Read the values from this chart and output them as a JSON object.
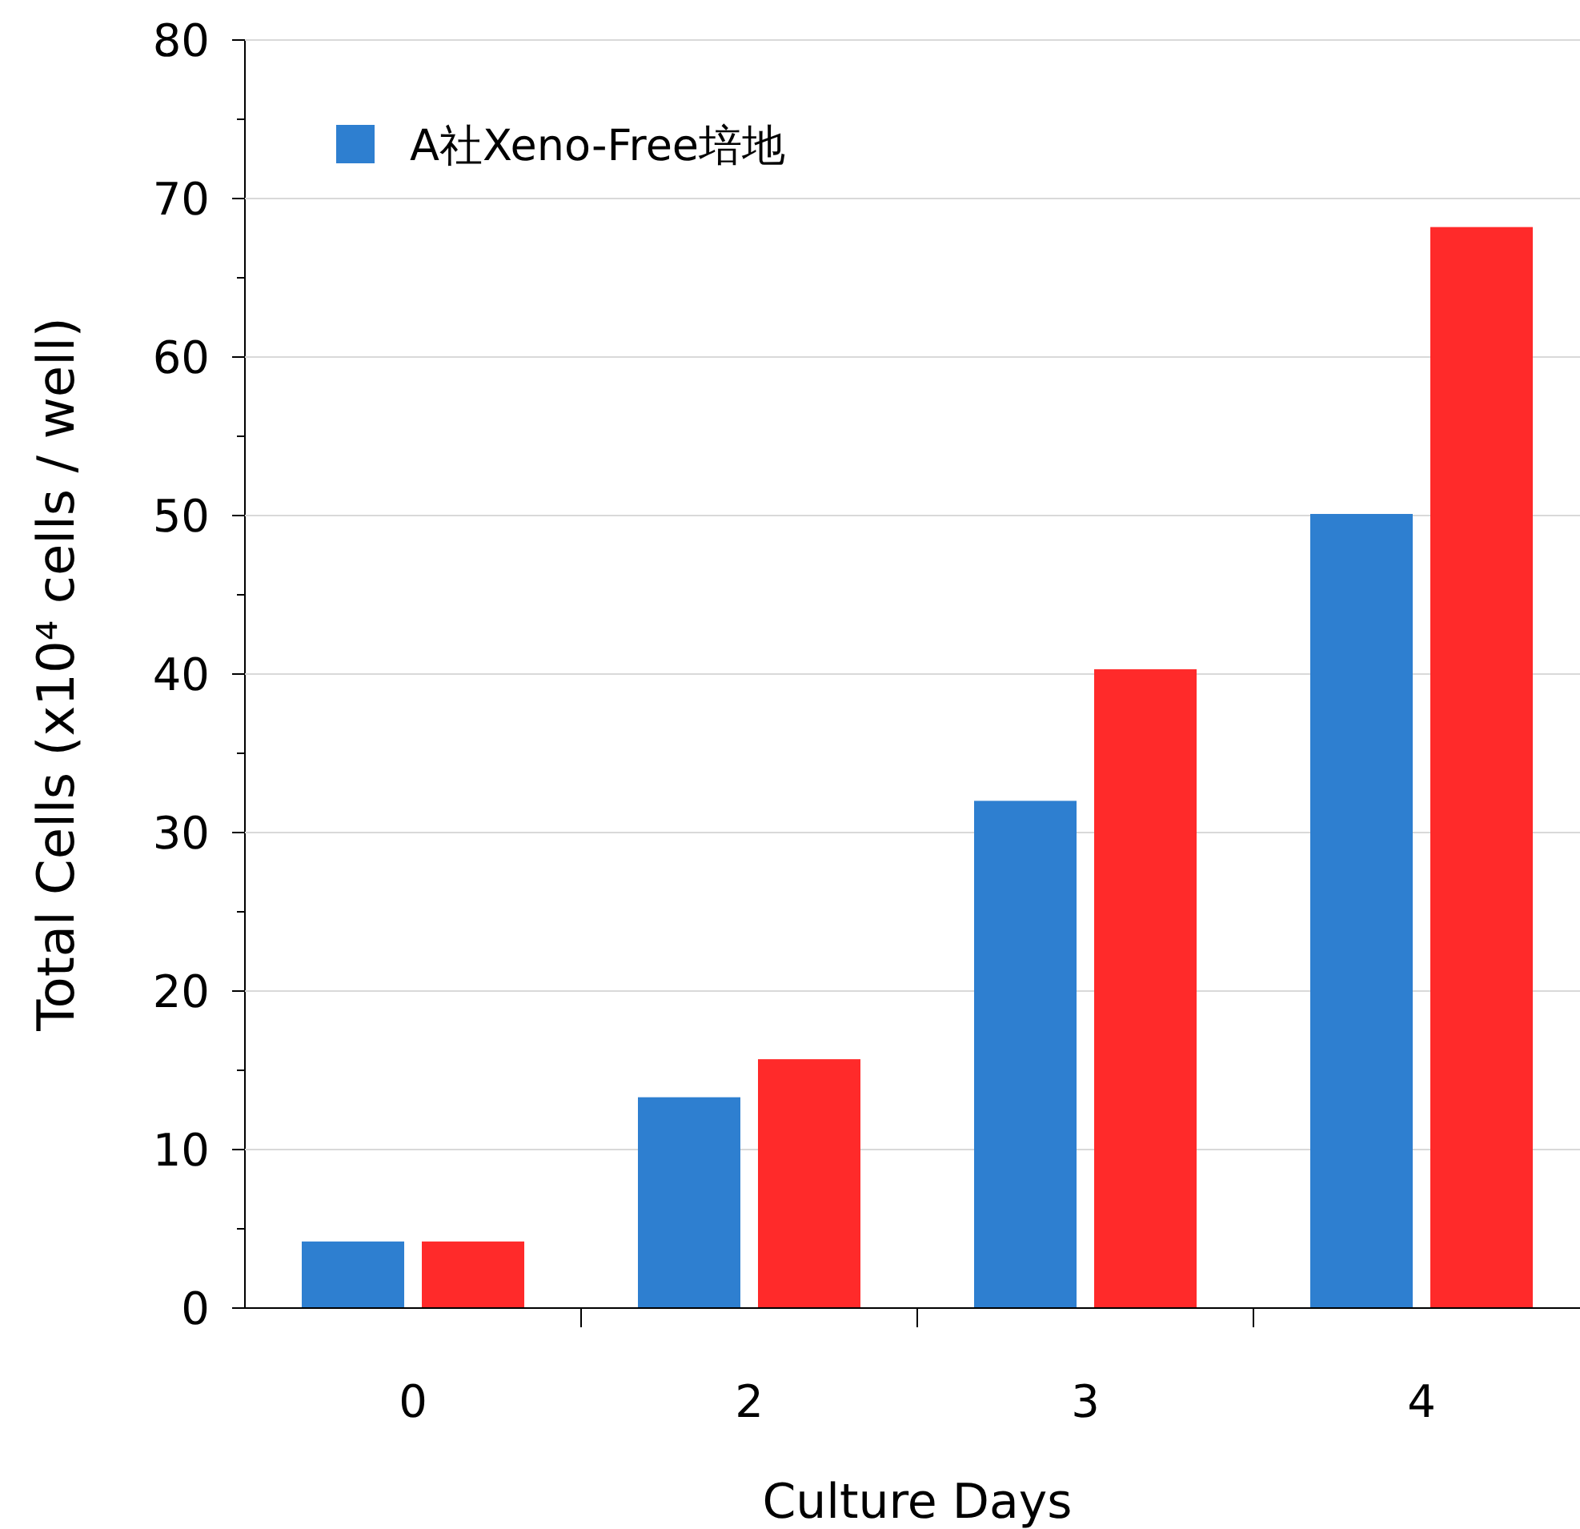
{
  "chart_data": {
    "type": "bar",
    "xlabel": "Culture Days",
    "ylabel": "Total Cells (x10⁴ cells / well)",
    "categories": [
      "0",
      "2",
      "3",
      "4"
    ],
    "series": [
      {
        "name": "A社Xeno-Free培地",
        "color": "#2e7fd0",
        "values": [
          4.2,
          13.3,
          32,
          50.1
        ]
      },
      {
        "color": "#ff2a2a",
        "values": [
          4.2,
          15.7,
          40.3,
          68.2
        ]
      }
    ],
    "ylim": [
      0,
      80
    ],
    "yticks": [
      0,
      10,
      20,
      30,
      40,
      50,
      60,
      70,
      80
    ],
    "grid": "y",
    "legend": "top left"
  }
}
